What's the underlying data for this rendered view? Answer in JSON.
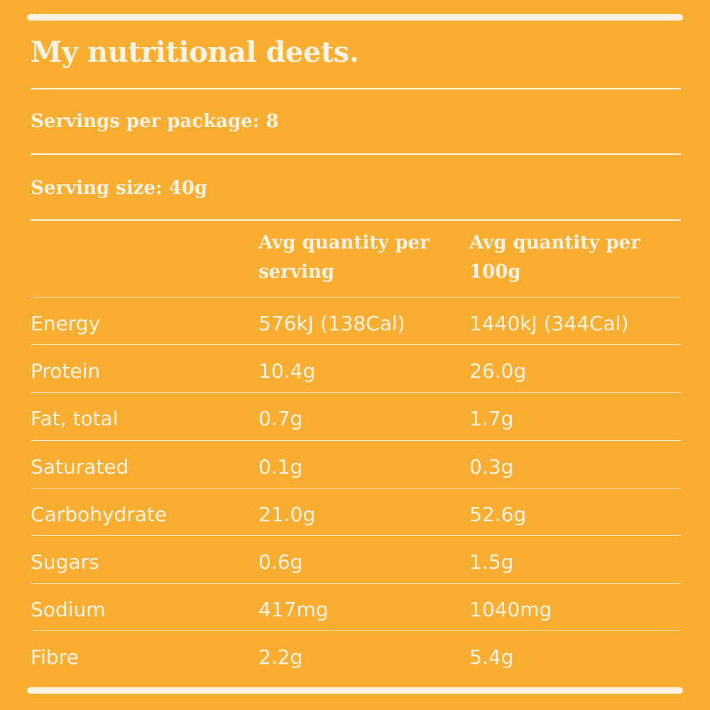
{
  "title": "My nutritional deets.",
  "servings_per_package": "Servings per package: 8",
  "serving_size": "Serving size: 40g",
  "table": {
    "columns": [
      "",
      "Avg quantity per serving",
      "Avg quantity per 100g"
    ],
    "rows": [
      {
        "nutrient": "Energy",
        "per_serving": "576kJ (138Cal)",
        "per_100g": "1440kJ (344Cal)"
      },
      {
        "nutrient": "Protein",
        "per_serving": "10.4g",
        "per_100g": "26.0g"
      },
      {
        "nutrient": "Fat, total",
        "per_serving": "0.7g",
        "per_100g": "1.7g"
      },
      {
        "nutrient": "Saturated",
        "per_serving": "0.1g",
        "per_100g": "0.3g"
      },
      {
        "nutrient": "Carbohydrate",
        "per_serving": "21.0g",
        "per_100g": "52.6g"
      },
      {
        "nutrient": "Sugars",
        "per_serving": "0.6g",
        "per_100g": "1.5g"
      },
      {
        "nutrient": "Sodium",
        "per_serving": "417mg",
        "per_100g": "1040mg"
      },
      {
        "nutrient": "Fibre",
        "per_serving": "2.2g",
        "per_100g": "5.4g"
      }
    ]
  },
  "colors": {
    "background": "#f9ae32",
    "text": "#fdf3e2"
  }
}
